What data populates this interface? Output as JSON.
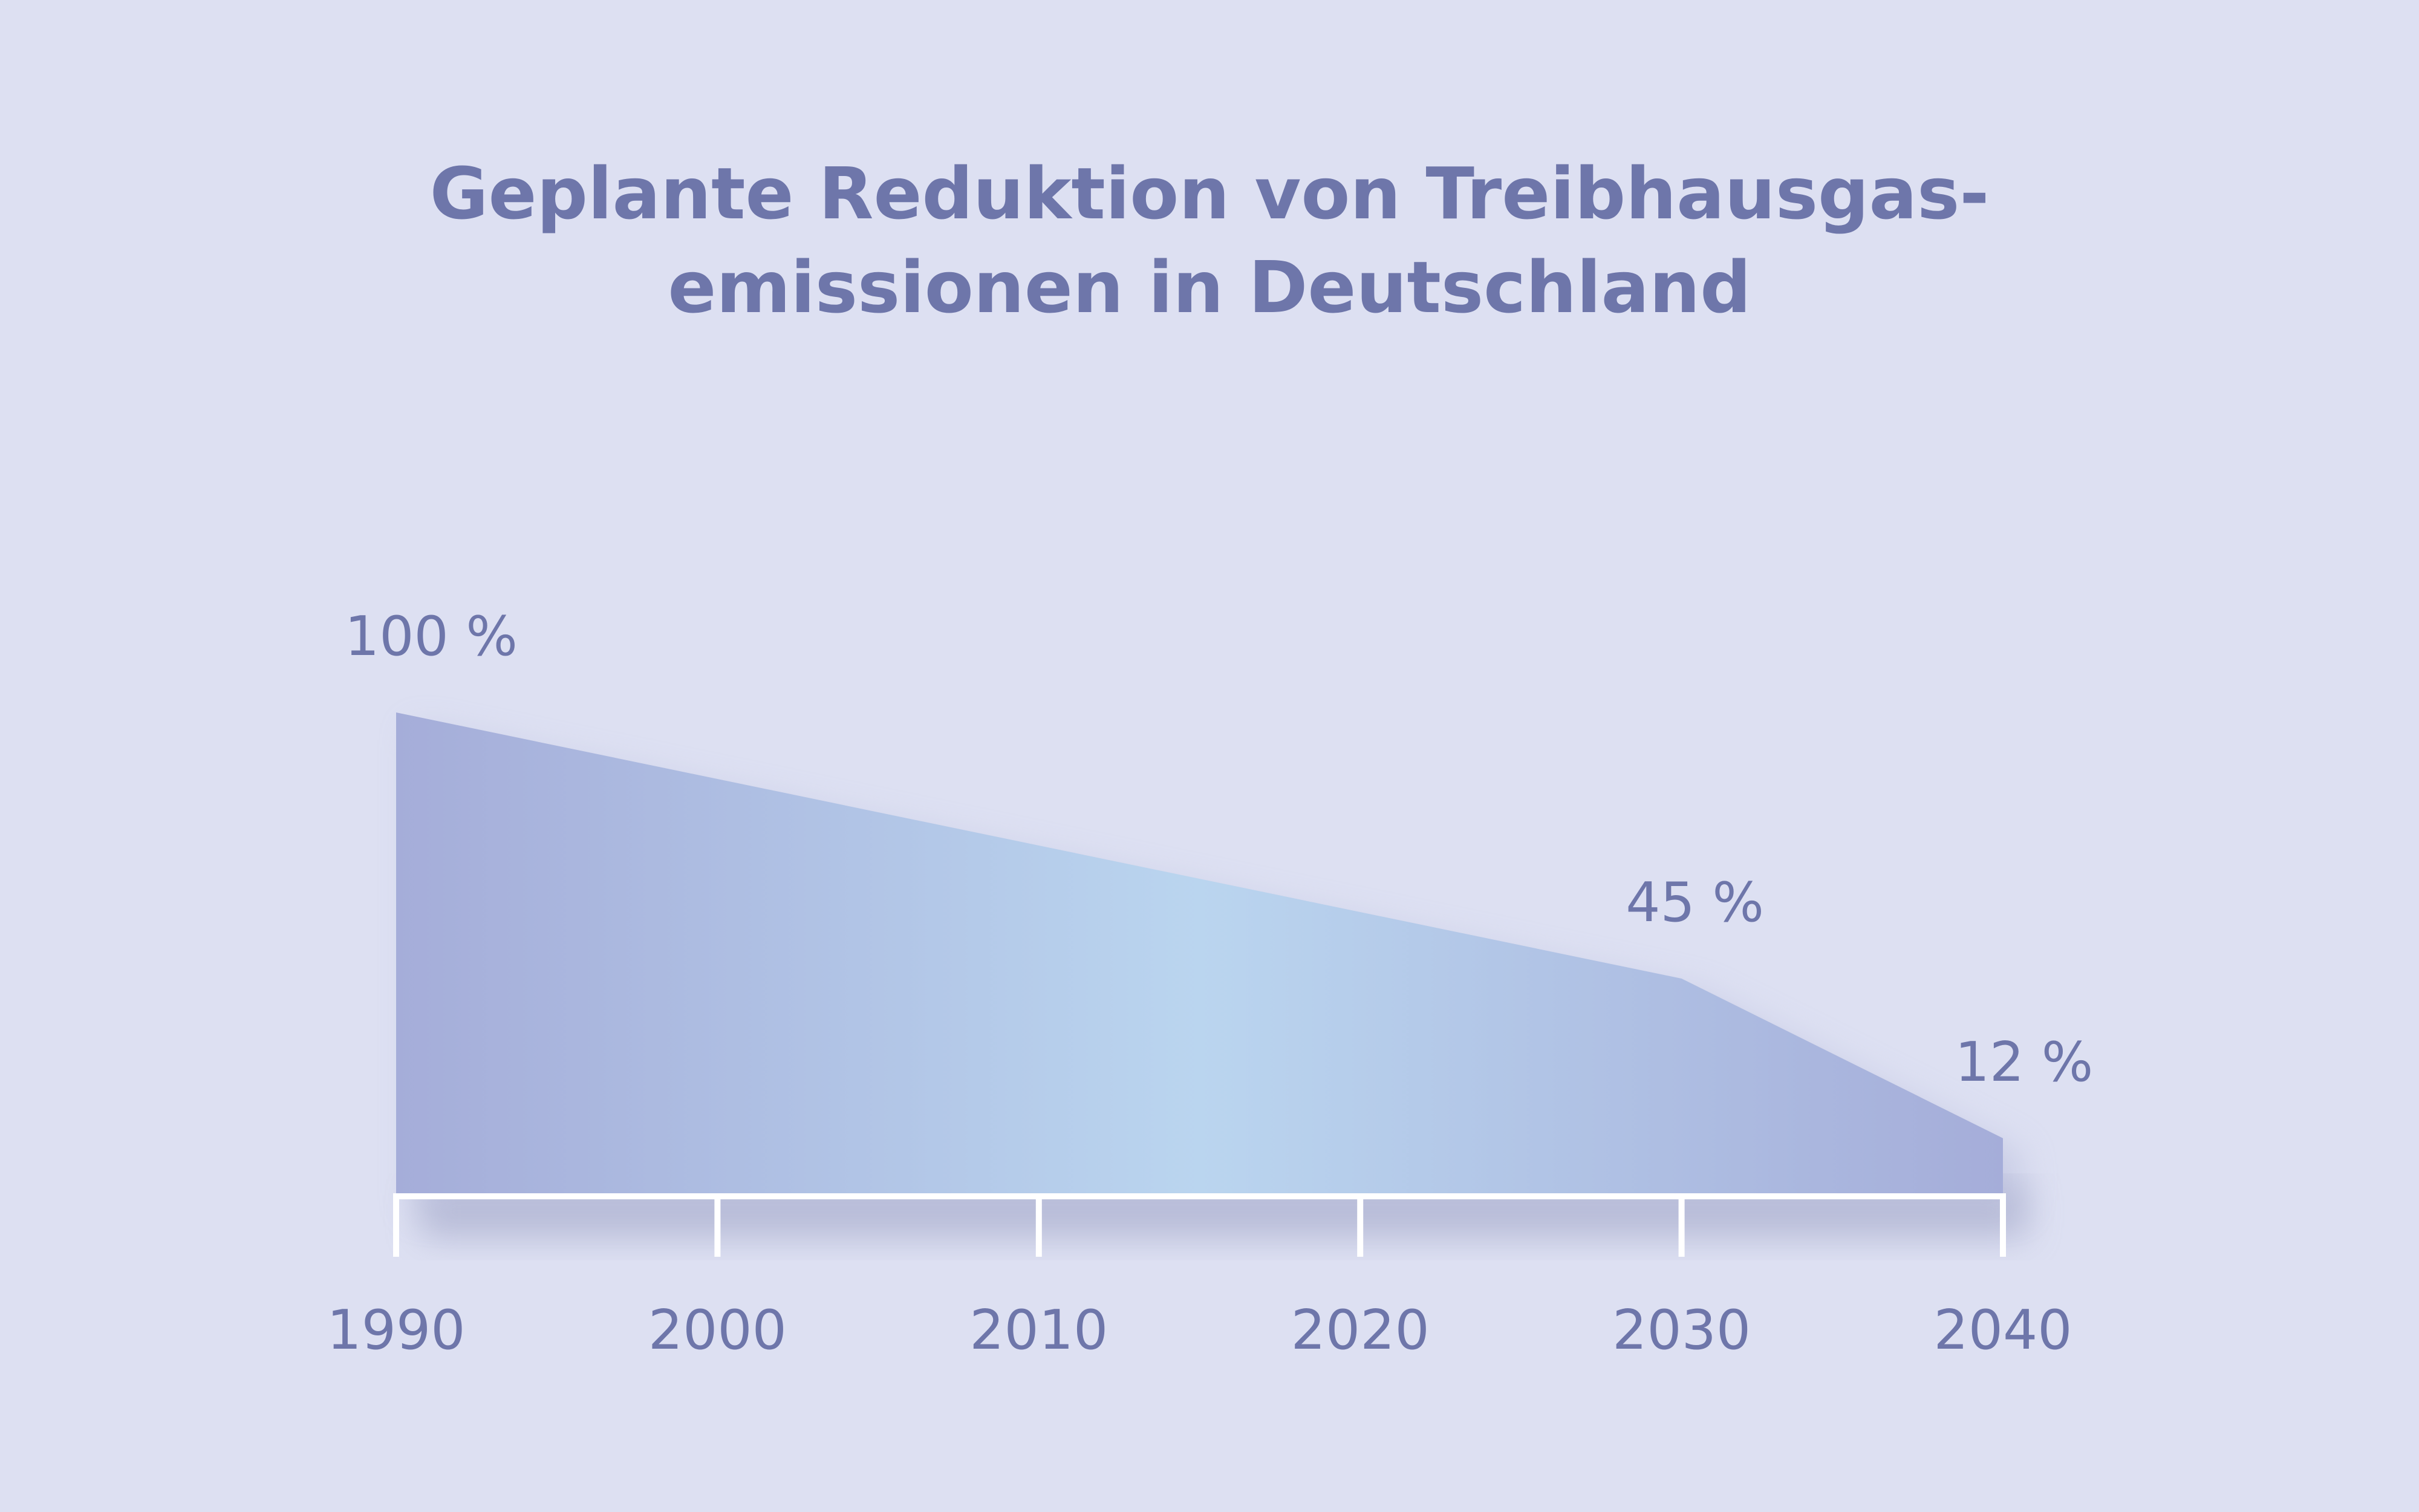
{
  "chart_data": {
    "type": "area",
    "title_lines": [
      "Geplante Reduktion von Treibhausgas-",
      "emissionen in Deutschland"
    ],
    "x": [
      1990,
      2030,
      2040
    ],
    "values": [
      100,
      45,
      12
    ],
    "data_labels": [
      "100 %",
      "45 %",
      "12 %"
    ],
    "xticks": [
      "1990",
      "2000",
      "2010",
      "2020",
      "2030",
      "2040"
    ],
    "xlim": [
      1990,
      2040
    ],
    "ylim": [
      0,
      100
    ],
    "grid": false,
    "legend": "none"
  },
  "colors": {
    "background": "#dde0f2",
    "text": "#6e76aa",
    "fill_edge": "#a5add9",
    "fill_center": "#bad5ef",
    "axis": "#ffffff"
  }
}
